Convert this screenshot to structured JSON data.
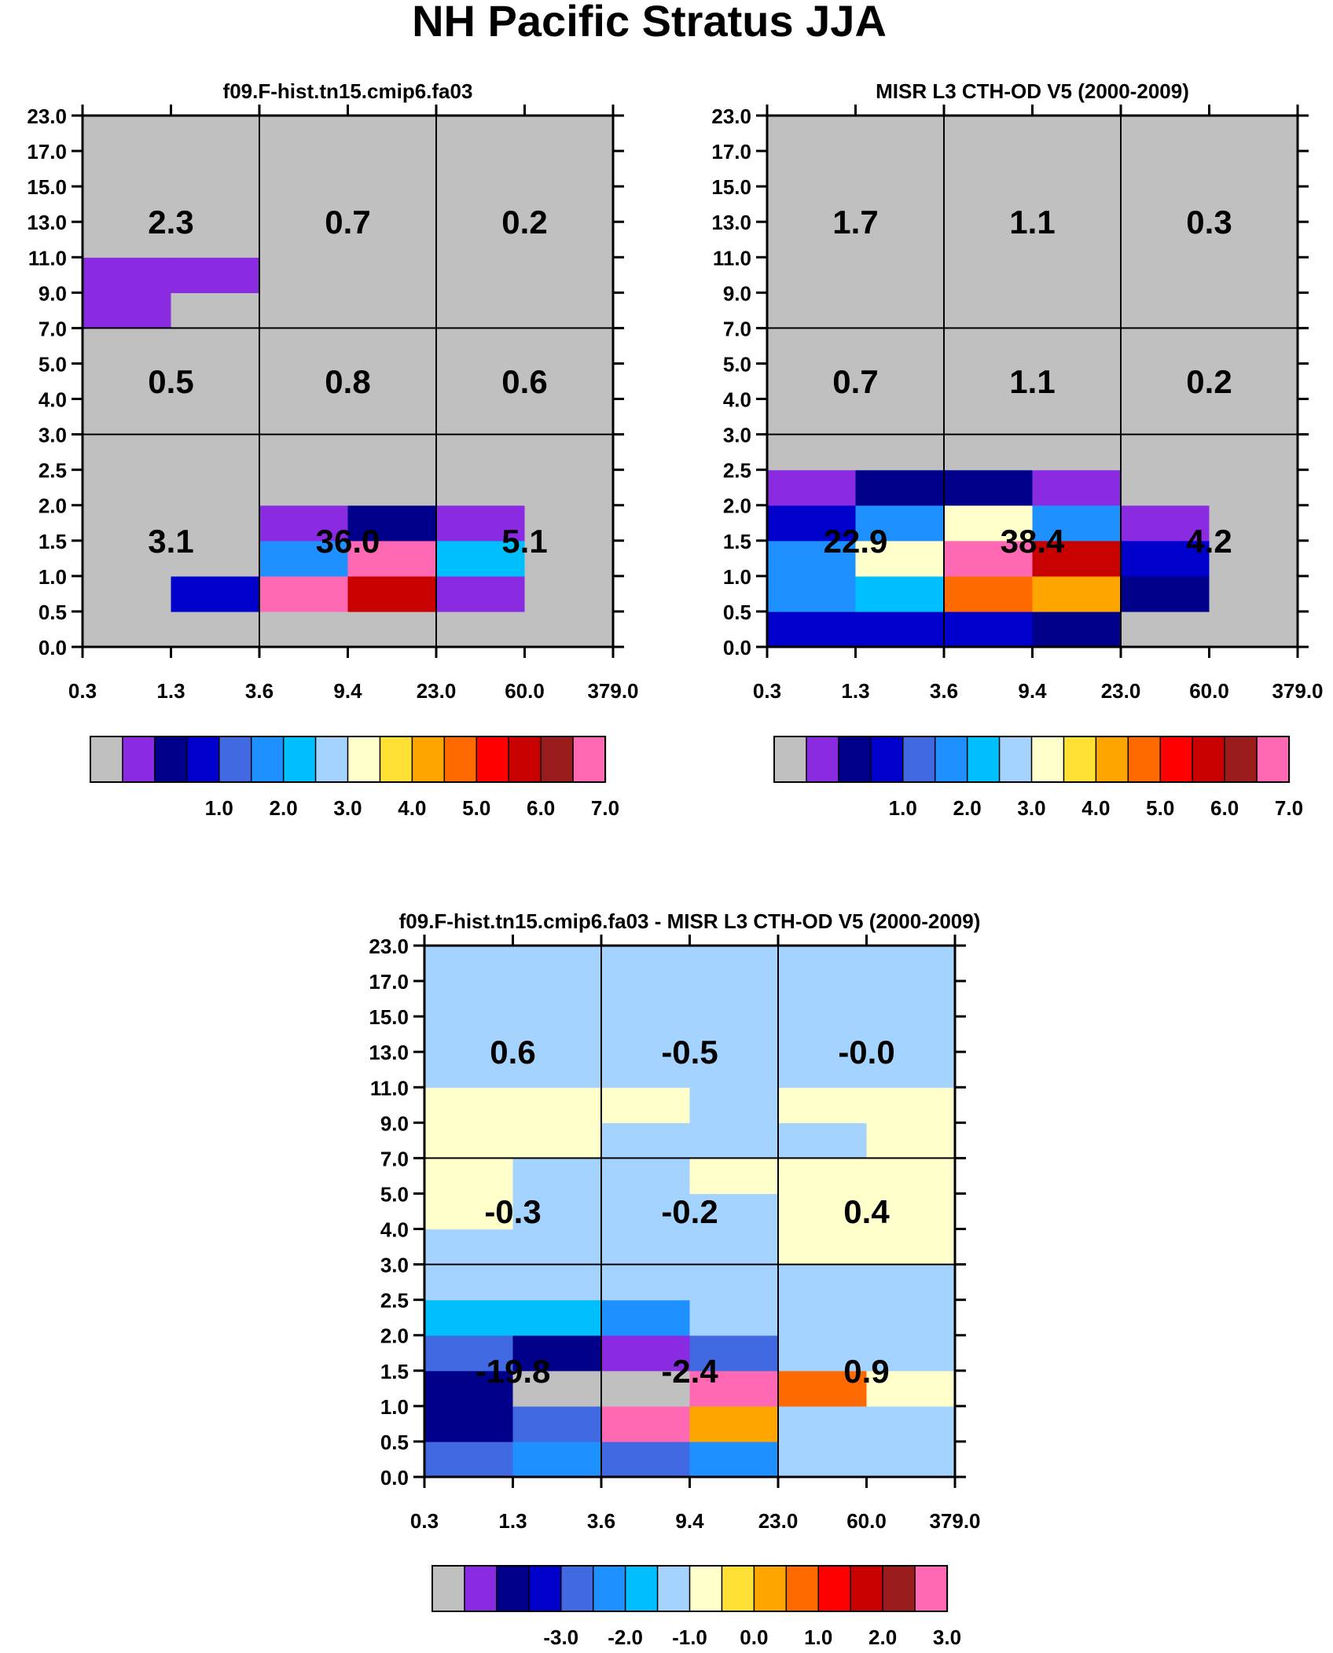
{
  "figure_title": "NH Pacific Stratus JJA",
  "colors": {
    "palette": [
      "#c0c0c0",
      "#8a2be2",
      "#00008b",
      "#0000cd",
      "#4169e1",
      "#1e90ff",
      "#00bfff",
      "#a4d3ff",
      "#ffffcc",
      "#ffe135",
      "#ffa500",
      "#ff6a00",
      "#ff0000",
      "#c80000",
      "#9b1c1c",
      "#ff69b4"
    ],
    "grid_line": "#000000",
    "frame": "#000000"
  },
  "chart_data": [
    {
      "type": "heatmap",
      "title": "f09.F-hist.tn15.cmip6.fa03",
      "xlabel": "",
      "ylabel": "",
      "x_ticks": [
        "0.3",
        "1.3",
        "3.6",
        "9.4",
        "23.0",
        "60.0",
        "379.0"
      ],
      "y_ticks": [
        "0.0",
        "0.5",
        "1.0",
        "1.5",
        "2.0",
        "2.5",
        "3.0",
        "4.0",
        "5.0",
        "7.0",
        "9.0",
        "11.0",
        "13.0",
        "15.0",
        "17.0",
        "23.0"
      ],
      "cells_bottom_to_top": [
        [
          0,
          0,
          0,
          0,
          0,
          0
        ],
        [
          0,
          3,
          15,
          13,
          1,
          0
        ],
        [
          0,
          0,
          5,
          15,
          6,
          0
        ],
        [
          0,
          0,
          1,
          2,
          1,
          0
        ],
        [
          0,
          0,
          0,
          0,
          0,
          0
        ],
        [
          0,
          0,
          0,
          0,
          0,
          0
        ],
        [
          0,
          0,
          0,
          0,
          0,
          0
        ],
        [
          0,
          0,
          0,
          0,
          0,
          0
        ],
        [
          0,
          0,
          0,
          0,
          0,
          0
        ],
        [
          1,
          0,
          0,
          0,
          0,
          0
        ],
        [
          1,
          1,
          0,
          0,
          0,
          0
        ],
        [
          0,
          0,
          0,
          0,
          0,
          0
        ],
        [
          0,
          0,
          0,
          0,
          0,
          0
        ],
        [
          0,
          0,
          0,
          0,
          0,
          0
        ],
        [
          0,
          0,
          0,
          0,
          0,
          0
        ]
      ],
      "group_sums": {
        "high": [
          "2.3",
          "0.7",
          "0.2"
        ],
        "mid": [
          "0.5",
          "0.8",
          "0.6"
        ],
        "low": [
          "3.1",
          "36.0",
          "5.1"
        ]
      },
      "colorbar": {
        "labels": [
          "1.0",
          "2.0",
          "3.0",
          "4.0",
          "5.0",
          "6.0",
          "7.0"
        ]
      }
    },
    {
      "type": "heatmap",
      "title": "MISR L3 CTH-OD V5 (2000-2009)",
      "xlabel": "",
      "ylabel": "",
      "x_ticks": [
        "0.3",
        "1.3",
        "3.6",
        "9.4",
        "23.0",
        "60.0",
        "379.0"
      ],
      "y_ticks": [
        "0.0",
        "0.5",
        "1.0",
        "1.5",
        "2.0",
        "2.5",
        "3.0",
        "4.0",
        "5.0",
        "7.0",
        "9.0",
        "11.0",
        "13.0",
        "15.0",
        "17.0",
        "23.0"
      ],
      "cells_bottom_to_top": [
        [
          3,
          3,
          3,
          2,
          0,
          0
        ],
        [
          5,
          6,
          11,
          10,
          2,
          0
        ],
        [
          5,
          8,
          15,
          13,
          3,
          0
        ],
        [
          3,
          5,
          8,
          5,
          1,
          0
        ],
        [
          1,
          2,
          2,
          1,
          0,
          0
        ],
        [
          0,
          0,
          0,
          0,
          0,
          0
        ],
        [
          0,
          0,
          0,
          0,
          0,
          0
        ],
        [
          0,
          0,
          0,
          0,
          0,
          0
        ],
        [
          0,
          0,
          0,
          0,
          0,
          0
        ],
        [
          0,
          0,
          0,
          0,
          0,
          0
        ],
        [
          0,
          0,
          0,
          0,
          0,
          0
        ],
        [
          0,
          0,
          0,
          0,
          0,
          0
        ],
        [
          0,
          0,
          0,
          0,
          0,
          0
        ],
        [
          0,
          0,
          0,
          0,
          0,
          0
        ],
        [
          0,
          0,
          0,
          0,
          0,
          0
        ]
      ],
      "group_sums": {
        "high": [
          "1.7",
          "1.1",
          "0.3"
        ],
        "mid": [
          "0.7",
          "1.1",
          "0.2"
        ],
        "low": [
          "22.9",
          "38.4",
          "4.2"
        ]
      },
      "colorbar": {
        "labels": [
          "1.0",
          "2.0",
          "3.0",
          "4.0",
          "5.0",
          "6.0",
          "7.0"
        ]
      }
    },
    {
      "type": "heatmap",
      "title": "f09.F-hist.tn15.cmip6.fa03 - MISR L3 CTH-OD V5 (2000-2009)",
      "xlabel": "",
      "ylabel": "",
      "x_ticks": [
        "0.3",
        "1.3",
        "3.6",
        "9.4",
        "23.0",
        "60.0",
        "379.0"
      ],
      "y_ticks": [
        "0.0",
        "0.5",
        "1.0",
        "1.5",
        "2.0",
        "2.5",
        "3.0",
        "4.0",
        "5.0",
        "7.0",
        "9.0",
        "11.0",
        "13.0",
        "15.0",
        "17.0",
        "23.0"
      ],
      "cells_bottom_to_top": [
        [
          4,
          5,
          4,
          5,
          7,
          7
        ],
        [
          2,
          4,
          15,
          10,
          7,
          7
        ],
        [
          2,
          0,
          0,
          15,
          11,
          8
        ],
        [
          4,
          2,
          1,
          4,
          7,
          7
        ],
        [
          6,
          6,
          5,
          7,
          7,
          7
        ],
        [
          7,
          7,
          7,
          7,
          7,
          7
        ],
        [
          7,
          7,
          7,
          7,
          8,
          8
        ],
        [
          8,
          7,
          7,
          7,
          8,
          8
        ],
        [
          8,
          7,
          7,
          8,
          8,
          8
        ],
        [
          8,
          8,
          7,
          7,
          7,
          8
        ],
        [
          8,
          8,
          8,
          7,
          8,
          8
        ],
        [
          7,
          7,
          7,
          7,
          7,
          7
        ],
        [
          7,
          7,
          7,
          7,
          7,
          7
        ],
        [
          7,
          7,
          7,
          7,
          7,
          7
        ],
        [
          7,
          7,
          7,
          7,
          7,
          7
        ]
      ],
      "group_sums": {
        "high": [
          "0.6",
          "-0.5",
          "-0.0"
        ],
        "mid": [
          "-0.3",
          "-0.2",
          "0.4"
        ],
        "low": [
          "-19.8",
          "-2.4",
          "0.9"
        ]
      },
      "colorbar": {
        "labels": [
          "-3.0",
          "-2.0",
          "-1.0",
          "0.0",
          "1.0",
          "2.0",
          "3.0"
        ]
      }
    }
  ]
}
